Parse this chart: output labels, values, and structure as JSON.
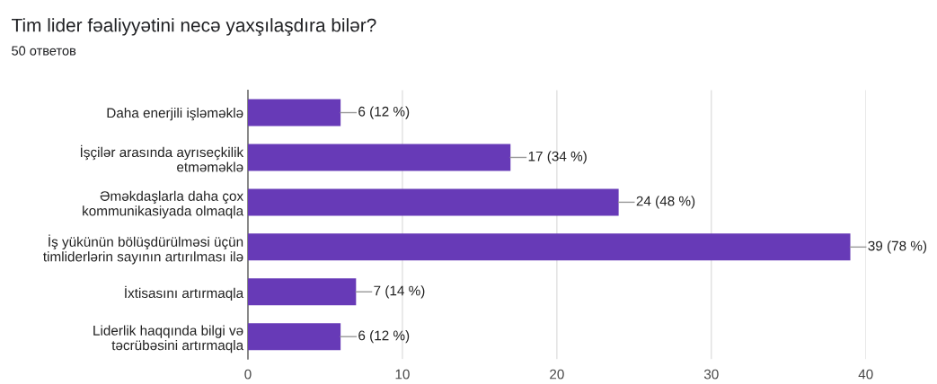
{
  "chart_data": {
    "type": "bar",
    "orientation": "horizontal",
    "title": "Tim lider fəaliyyətini necə yaxşılaşdıra bilər?",
    "subtitle": "50 ответов",
    "categories": [
      "Daha enerjili işləməklə",
      "İşçilər arasında ayrıseçkilik\netməməklə",
      "Əməkdaşlarla daha çox\nkommunikasiyada olmaqla",
      "İş yükünün bölüşdürülməsi üçün\ntimliderlərin sayının artırılması ilə",
      "İxtisasını artırmaqla",
      "Liderlik haqqında bilgi və\ntəcrübəsini artırmaqla"
    ],
    "values": [
      6,
      17,
      24,
      39,
      7,
      6
    ],
    "value_labels": [
      "6 (12 %)",
      "17 (34 %)",
      "24 (48 %)",
      "39 (78 %)",
      "7 (14 %)",
      "6 (12 %)"
    ],
    "color": "#673ab7",
    "xlim": [
      0,
      40
    ],
    "xticks": [
      0,
      10,
      20,
      30,
      40
    ],
    "grid": "x",
    "legend": false
  }
}
